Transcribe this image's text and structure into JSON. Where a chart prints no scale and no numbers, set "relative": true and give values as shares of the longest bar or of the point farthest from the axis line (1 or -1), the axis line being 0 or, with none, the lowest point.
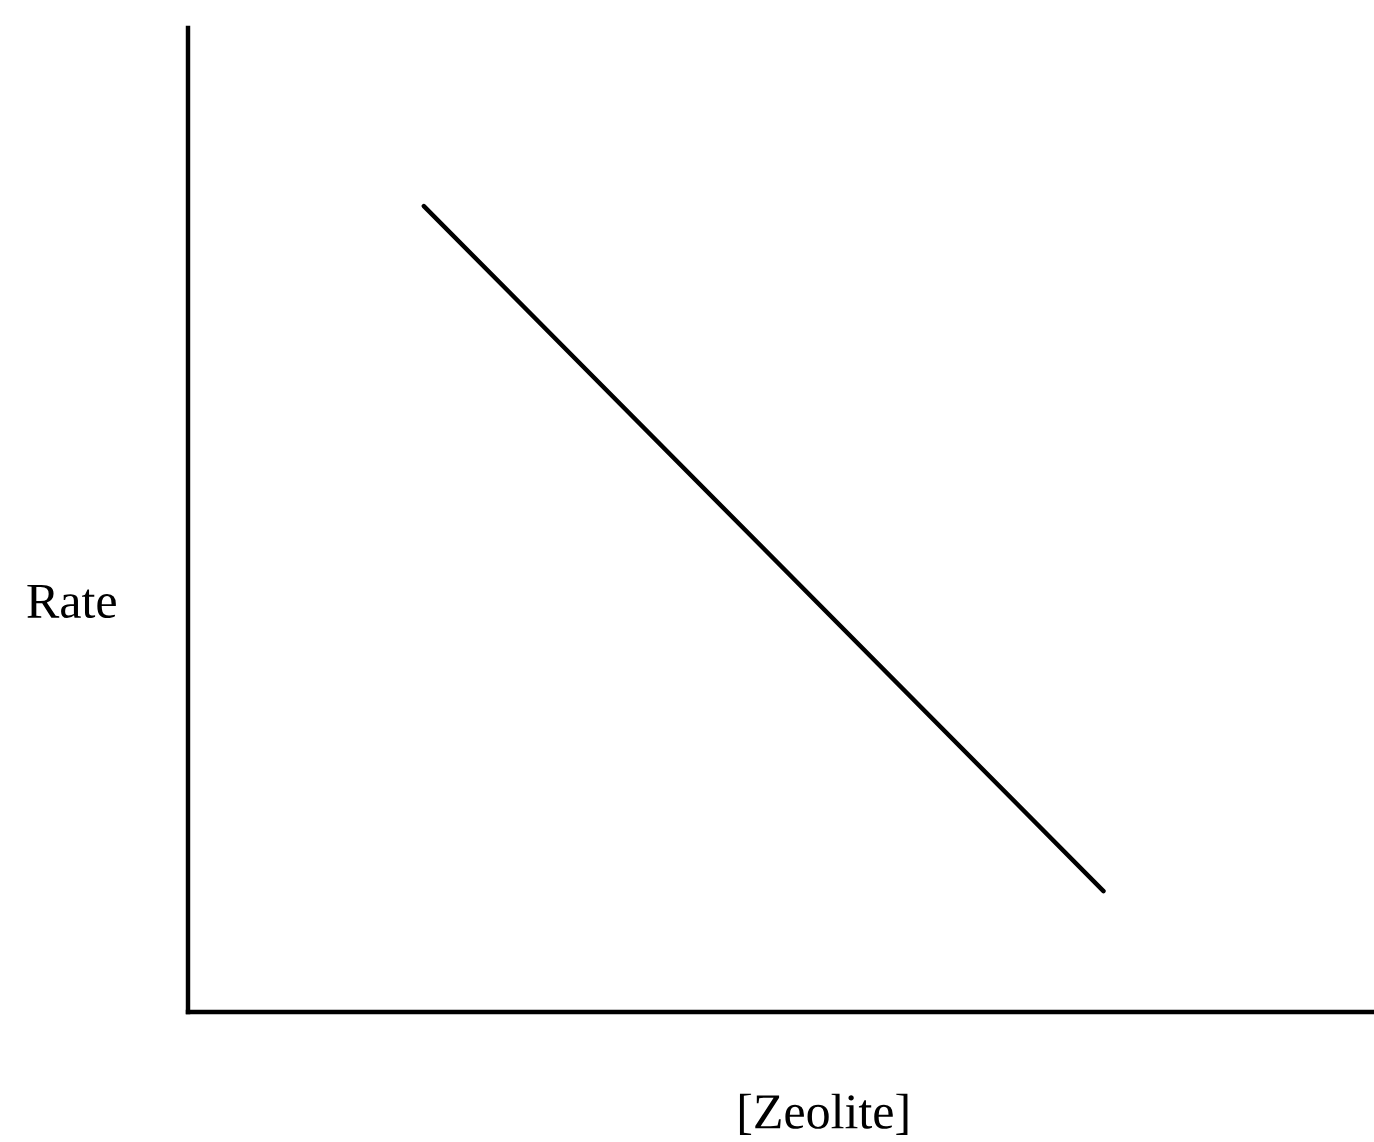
{
  "chart_data": {
    "type": "line",
    "xlabel": "[Zeolite]",
    "ylabel": "Rate",
    "categories": [
      null,
      null
    ],
    "values": [
      1,
      0.15
    ],
    "color": "#000000",
    "line_style": "solid",
    "relative": true
  }
}
